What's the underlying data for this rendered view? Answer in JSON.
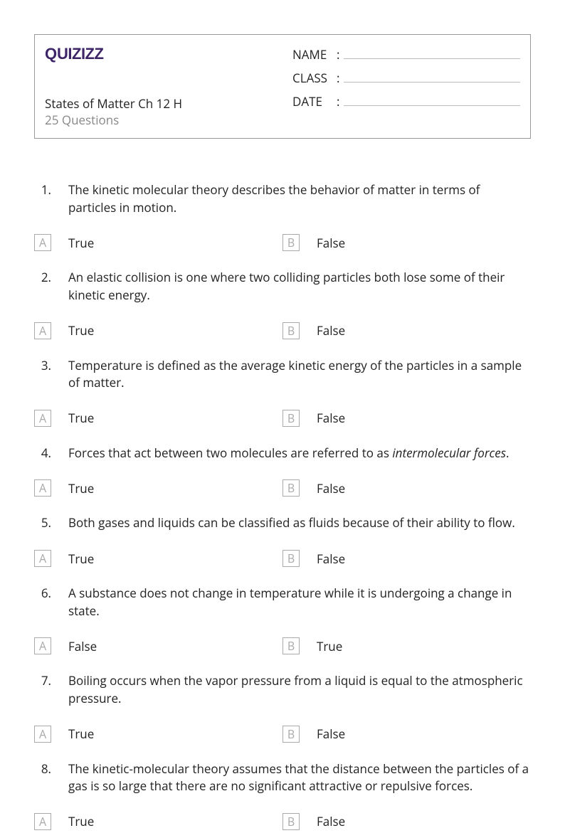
{
  "logo": "Quizizz",
  "title": "States of Matter Ch 12 H",
  "subtitle": "25 Questions",
  "formFields": [
    {
      "label": "NAME"
    },
    {
      "label": "CLASS"
    },
    {
      "label": "DATE "
    }
  ],
  "questions": [
    {
      "num": "1.",
      "text": "The kinetic molecular theory describes the behavior of matter in terms of particles in motion.",
      "a": "True",
      "b": "False"
    },
    {
      "num": "2.",
      "text": "An elastic collision is one where two colliding particles both lose some of their kinetic energy.",
      "a": "True",
      "b": "False"
    },
    {
      "num": "3.",
      "text": "Temperature is defined as the average kinetic energy of the particles in a sample of matter.",
      "a": "True",
      "b": "False"
    },
    {
      "num": "4.",
      "html": "Forces that act between two molecules are referred to as <em>intermolecular forces</em>.",
      "a": "True",
      "b": "False"
    },
    {
      "num": "5.",
      "text": "Both gases and liquids can be classified as fluids because of their ability to flow.",
      "a": "True",
      "b": "False"
    },
    {
      "num": "6.",
      "text": "A substance does not change in temperature while it is undergoing a change in state.",
      "a": "False",
      "b": "True"
    },
    {
      "num": "7.",
      "text": "Boiling occurs when the vapor pressure from a liquid is equal to the atmospheric pressure.",
      "a": "True",
      "b": "False"
    },
    {
      "num": "8.",
      "text": "The kinetic-molecular theory assumes that the distance between the particles of a gas is so large that there are no significant attractive or repulsive forces.",
      "a": "True",
      "b": "False"
    }
  ],
  "answerLabels": {
    "a": "A",
    "b": "B"
  }
}
